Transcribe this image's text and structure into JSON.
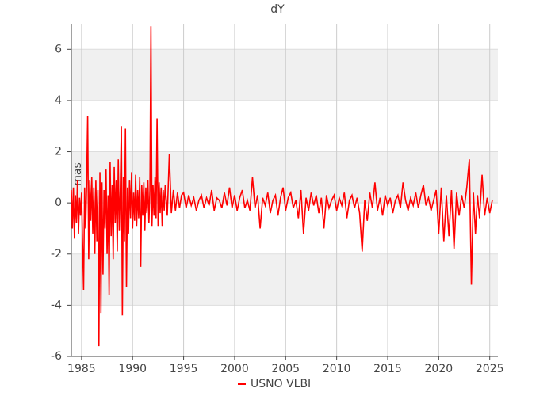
{
  "chart_data": {
    "type": "line",
    "title": "dY",
    "y_label": "mas",
    "xlim": [
      1984,
      2025.8
    ],
    "xticks": [
      1985,
      1990,
      1995,
      2000,
      2005,
      2010,
      2015,
      2020,
      2025
    ],
    "ylim": [
      -6,
      7
    ],
    "yticks": [
      -6,
      -4,
      -2,
      0,
      2,
      4,
      6
    ],
    "grid": true,
    "bands": true,
    "band_color": "#f0f0f0",
    "legend": "bottom",
    "x": [
      1984.0,
      1984.1,
      1984.2,
      1984.3,
      1984.4,
      1984.5,
      1984.6,
      1984.7,
      1984.8,
      1984.9,
      1985.0,
      1985.1,
      1985.2,
      1985.3,
      1985.4,
      1985.5,
      1985.6,
      1985.7,
      1985.8,
      1985.9,
      1986.0,
      1986.1,
      1986.2,
      1986.3,
      1986.4,
      1986.5,
      1986.6,
      1986.7,
      1986.8,
      1986.9,
      1987.0,
      1987.1,
      1987.2,
      1987.3,
      1987.4,
      1987.5,
      1987.6,
      1987.7,
      1987.8,
      1987.9,
      1988.0,
      1988.1,
      1988.2,
      1988.3,
      1988.4,
      1988.5,
      1988.6,
      1988.7,
      1988.8,
      1988.9,
      1989.0,
      1989.1,
      1989.2,
      1989.3,
      1989.4,
      1989.5,
      1989.6,
      1989.7,
      1989.8,
      1989.9,
      1990.0,
      1990.1,
      1990.2,
      1990.3,
      1990.4,
      1990.5,
      1990.6,
      1990.7,
      1990.8,
      1990.9,
      1991.0,
      1991.1,
      1991.2,
      1991.3,
      1991.4,
      1991.5,
      1991.6,
      1991.7,
      1991.8,
      1991.9,
      1992.0,
      1992.1,
      1992.2,
      1992.3,
      1992.4,
      1992.5,
      1992.6,
      1992.7,
      1992.8,
      1992.9,
      1993.0,
      1993.1,
      1993.2,
      1993.4,
      1993.6,
      1993.8,
      1994.0,
      1994.2,
      1994.4,
      1994.6,
      1994.8,
      1995.0,
      1995.25,
      1995.5,
      1995.75,
      1996.0,
      1996.25,
      1996.5,
      1996.75,
      1997.0,
      1997.25,
      1997.5,
      1997.75,
      1998.0,
      1998.25,
      1998.5,
      1998.75,
      1999.0,
      1999.25,
      1999.5,
      1999.75,
      2000.0,
      2000.25,
      2000.5,
      2000.75,
      2001.0,
      2001.25,
      2001.5,
      2001.75,
      2002.0,
      2002.25,
      2002.5,
      2002.75,
      2003.0,
      2003.25,
      2003.5,
      2003.75,
      2004.0,
      2004.25,
      2004.5,
      2004.75,
      2005.0,
      2005.25,
      2005.5,
      2005.75,
      2006.0,
      2006.25,
      2006.5,
      2006.75,
      2007.0,
      2007.25,
      2007.5,
      2007.75,
      2008.0,
      2008.25,
      2008.5,
      2008.75,
      2009.0,
      2009.25,
      2009.5,
      2009.75,
      2010.0,
      2010.25,
      2010.5,
      2010.75,
      2011.0,
      2011.25,
      2011.5,
      2011.75,
      2012.0,
      2012.25,
      2012.5,
      2012.75,
      2013.0,
      2013.25,
      2013.5,
      2013.75,
      2014.0,
      2014.25,
      2014.5,
      2014.75,
      2015.0,
      2015.25,
      2015.5,
      2015.75,
      2016.0,
      2016.25,
      2016.5,
      2016.75,
      2017.0,
      2017.25,
      2017.5,
      2017.75,
      2018.0,
      2018.25,
      2018.5,
      2018.75,
      2019.0,
      2019.25,
      2019.5,
      2019.75,
      2020.0,
      2020.25,
      2020.5,
      2020.75,
      2021.0,
      2021.25,
      2021.5,
      2021.75,
      2022.0,
      2022.25,
      2022.5,
      2022.75,
      2023.0,
      2023.2,
      2023.4,
      2023.6,
      2023.8,
      2024.0,
      2024.25,
      2024.5,
      2024.75,
      2025.0,
      2025.25
    ],
    "series": [
      {
        "name": "USNO VLBI",
        "color": "#ff0000",
        "values": [
          0.5,
          -1.0,
          0.6,
          -1.4,
          0.3,
          -0.8,
          0.9,
          -1.2,
          0.2,
          -0.5,
          0.4,
          -1.6,
          -3.4,
          0.6,
          -1.0,
          0.8,
          3.4,
          -2.2,
          0.9,
          -0.7,
          1.0,
          -1.2,
          0.6,
          -2.0,
          0.9,
          -1.5,
          0.5,
          -5.6,
          1.2,
          -4.3,
          0.8,
          -2.8,
          0.5,
          -1.0,
          1.3,
          -2.0,
          0.3,
          -3.6,
          1.6,
          -1.3,
          0.7,
          -2.2,
          1.4,
          -0.8,
          0.9,
          -1.9,
          1.7,
          -1.1,
          0.5,
          3.0,
          -4.4,
          1.0,
          -1.5,
          2.9,
          -3.3,
          0.6,
          -1.2,
          0.9,
          -0.6,
          1.2,
          -1.0,
          0.4,
          -0.7,
          1.1,
          -0.9,
          0.5,
          -0.6,
          1.0,
          -2.5,
          0.7,
          -0.5,
          0.8,
          -1.1,
          0.6,
          -0.4,
          0.9,
          -0.8,
          0.5,
          6.9,
          -0.9,
          0.7,
          -0.5,
          1.0,
          -0.6,
          3.3,
          -0.9,
          0.8,
          -0.4,
          0.6,
          -0.9,
          0.5,
          -0.3,
          0.7,
          -0.5,
          1.9,
          -0.4,
          0.5,
          -0.3,
          0.4,
          -0.2,
          0.3,
          0.4,
          -0.2,
          0.3,
          -0.1,
          0.2,
          -0.3,
          0.1,
          0.3,
          -0.2,
          0.2,
          -0.1,
          0.5,
          -0.3,
          0.2,
          0.1,
          -0.2,
          0.4,
          -0.1,
          0.6,
          -0.2,
          0.3,
          -0.3,
          0.2,
          0.5,
          -0.2,
          0.1,
          -0.3,
          1.0,
          -0.2,
          0.3,
          -1.0,
          0.2,
          -0.1,
          0.4,
          -0.4,
          0.1,
          0.3,
          -0.5,
          0.2,
          0.6,
          -0.3,
          0.2,
          0.4,
          -0.2,
          0.1,
          -0.6,
          0.5,
          -1.2,
          0.2,
          -0.3,
          0.4,
          -0.1,
          0.3,
          -0.4,
          0.2,
          -1.0,
          0.3,
          -0.2,
          0.1,
          0.3,
          -0.3,
          0.2,
          -0.1,
          0.4,
          -0.6,
          0.1,
          0.3,
          -0.2,
          0.2,
          -0.4,
          -1.9,
          0.1,
          -0.7,
          0.4,
          -0.2,
          0.8,
          -0.3,
          0.2,
          -0.5,
          0.3,
          -0.1,
          0.2,
          -0.4,
          0.1,
          0.3,
          -0.2,
          0.8,
          0.1,
          -0.3,
          0.2,
          -0.1,
          0.4,
          -0.2,
          0.3,
          0.7,
          -0.1,
          0.2,
          -0.3,
          0.1,
          0.5,
          -1.2,
          0.6,
          -1.5,
          0.3,
          -1.3,
          0.5,
          -1.8,
          0.4,
          -0.5,
          0.3,
          -0.2,
          0.6,
          1.7,
          -3.2,
          0.4,
          -1.2,
          0.3,
          -0.6,
          1.1,
          -0.5,
          0.2,
          -0.4,
          0.1
        ]
      }
    ]
  }
}
